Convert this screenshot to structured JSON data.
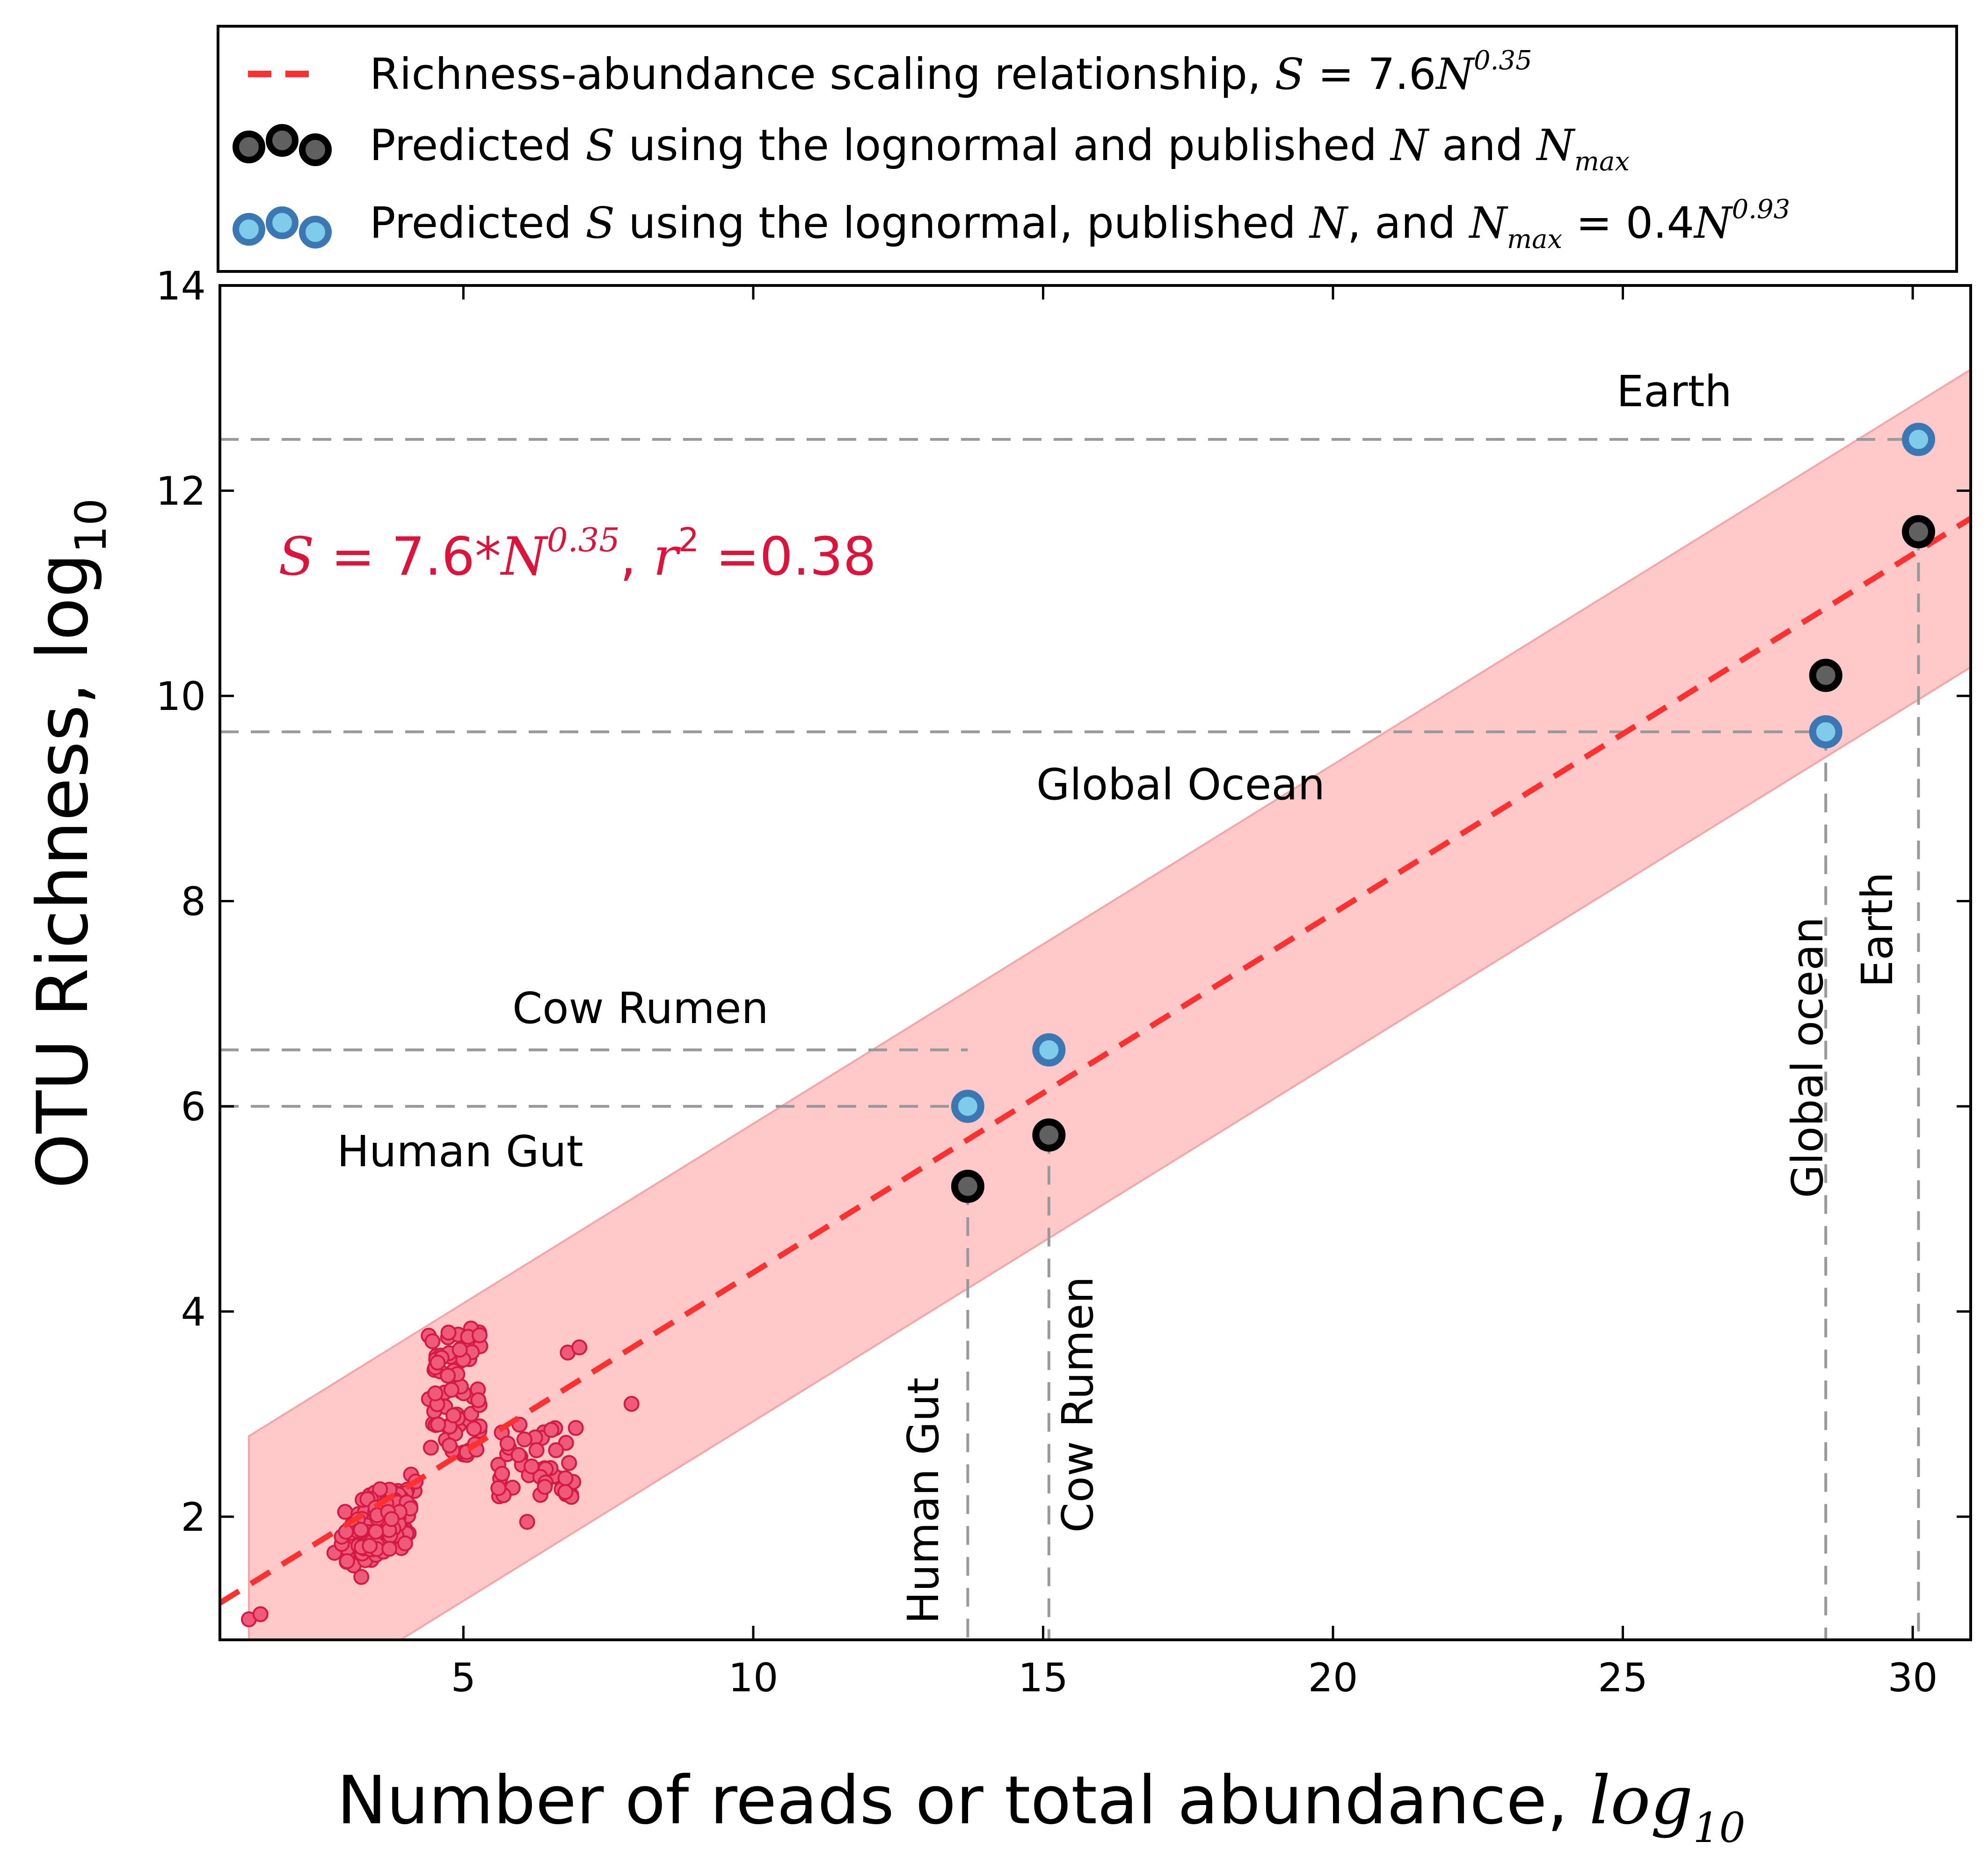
{
  "legend": {
    "fit_label": "Richness-abundance scaling relationship,",
    "fit_formula": {
      "s": "S",
      "eq": " = 7.6",
      "n": "N",
      "exp": "0.35"
    },
    "pub_label": {
      "a": "Predicted ",
      "s": "S",
      "b": " using the lognormal and published ",
      "n": "N",
      "c": " and ",
      "nmax": "N",
      "nsub": "max"
    },
    "est_label": {
      "a": "Predicted ",
      "s": "S",
      "b": " using the lognormal, published ",
      "n": "N",
      "c": ", and ",
      "nmax": "N",
      "nsub": "max",
      "d": " = 0.4",
      "n2": "N",
      "exp": "0.93"
    }
  },
  "equation": {
    "s": "S",
    "eq": " = 7.6*",
    "n": "N",
    "exp": "0.35",
    "sep": ", ",
    "r": "r",
    "r_exp": "2",
    "val": " =0.38"
  },
  "axes": {
    "ylabel": "OTU Richness, log",
    "ylabel_sub": "10",
    "xlabel": "Number of reads or total abundance, ",
    "xlabel_it": "log",
    "xlabel_sub": "10"
  },
  "annotations": {
    "earth_h": "Earth",
    "ocean_h": "Global Ocean",
    "rumen_h": "Cow Rumen",
    "gut_h": "Human Gut",
    "ocean_v": "Global ocean",
    "earth_v": "Earth",
    "rumen_v": "Cow Rumen",
    "gut_v": "Human Gut"
  },
  "colors": {
    "fit_line": "#ff3030",
    "band": "#ffc9c9",
    "band_edge": "#f4a6a6",
    "cloud_fill": "#f05a7a",
    "cloud_edge": "#d41a44",
    "published_fill": "#606060",
    "published_edge": "#000000",
    "estimated_fill": "#7ecbea",
    "estimated_edge": "#3b78b3",
    "ref_lines": "#999999",
    "equation_text": "#dc143c"
  },
  "chart_data": {
    "type": "scatter",
    "xlim": [
      0.8,
      31
    ],
    "ylim": [
      0.8,
      14
    ],
    "xticks": [
      5,
      10,
      15,
      20,
      25,
      30
    ],
    "yticks": [
      2,
      4,
      6,
      8,
      10,
      12,
      14
    ],
    "grid": false,
    "legend_position": "top, outside plot",
    "fit": {
      "intercept": 0.88,
      "slope": 0.35,
      "x_range": [
        0.8,
        31
      ],
      "band_halfwidth": 1.45,
      "band_x_start": 1.3
    },
    "published": [
      {
        "name": "Human Gut",
        "x": 13.7,
        "y": 5.22
      },
      {
        "name": "Cow Rumen",
        "x": 15.1,
        "y": 5.72
      },
      {
        "name": "Global ocean",
        "x": 28.5,
        "y": 10.2
      },
      {
        "name": "Earth",
        "x": 30.1,
        "y": 11.6
      }
    ],
    "estimated": [
      {
        "name": "Human Gut",
        "x": 13.7,
        "y": 6.0
      },
      {
        "name": "Cow Rumen",
        "x": 15.1,
        "y": 6.55
      },
      {
        "name": "Global ocean",
        "x": 28.5,
        "y": 9.65
      },
      {
        "name": "Earth",
        "x": 30.1,
        "y": 12.5
      }
    ],
    "reference_lines": {
      "horizontal": [
        {
          "y": 12.5,
          "x_end": 30.1
        },
        {
          "y": 9.65,
          "x_end": 28.5
        },
        {
          "y": 6.55,
          "x_end": 13.7
        },
        {
          "y": 6.0,
          "x_end": 13.7
        }
      ],
      "vertical": [
        {
          "x": 13.7,
          "y_top": 5.22
        },
        {
          "x": 15.1,
          "y_top": 5.72
        },
        {
          "x": 28.5,
          "y_top": 9.65
        },
        {
          "x": 30.1,
          "y_top": 11.6
        }
      ]
    },
    "sample_cloud": {
      "count": 400,
      "x_range": [
        1.3,
        7.9
      ],
      "y_range": [
        1.0,
        3.85
      ],
      "x_peak": 3.5,
      "outliers": [
        [
          6.8,
          3.6
        ],
        [
          7.0,
          3.65
        ],
        [
          7.9,
          3.1
        ],
        [
          6.1,
          1.95
        ],
        [
          1.3,
          1.0
        ],
        [
          1.5,
          1.05
        ]
      ]
    }
  }
}
